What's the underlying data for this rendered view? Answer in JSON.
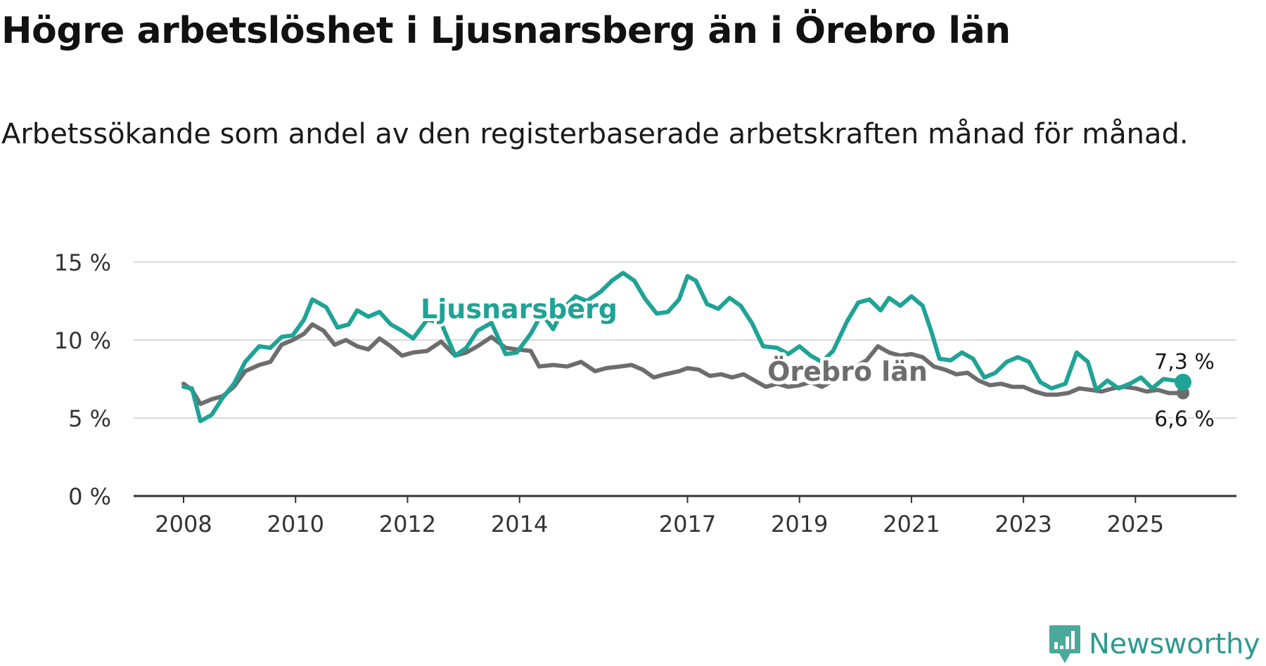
{
  "title": "Högre arbetslöshet i Ljusnarsberg än i Örebro län",
  "subtitle": "Arbetssökande som andel av den registerbaserade arbetskraften månad för månad.",
  "logo": {
    "text": "Newsworthy",
    "icon": "newsworthy-chart-icon"
  },
  "colors": {
    "ljusnarsberg": "#1fa396",
    "orebro": "#6d6d6d",
    "grid": "#d9d9d9",
    "axis": "#333333"
  },
  "chart_data": {
    "type": "line",
    "title": "Högre arbetslöshet i Ljusnarsberg än i Örebro län",
    "subtitle": "Arbetssökande som andel av den registerbaserade arbetskraften månad för månad.",
    "xlabel": "",
    "ylabel": "",
    "ylim": [
      0,
      15
    ],
    "xlim": [
      2008.0,
      2025.9
    ],
    "yticks": [
      0,
      5,
      10,
      15
    ],
    "ytick_labels": [
      "0 %",
      "5 %",
      "10 %",
      "15 %"
    ],
    "xticks": [
      2008,
      2010,
      2012,
      2014,
      2017,
      2019,
      2021,
      2023,
      2025
    ],
    "xtick_labels": [
      "2008",
      "2010",
      "2012",
      "2014",
      "2017",
      "2019",
      "2021",
      "2023",
      "2025"
    ],
    "grid": true,
    "series": [
      {
        "name": "Ljusnarsberg",
        "label": "Ljusnarsberg",
        "end_label": "7,3 %",
        "points": [
          [
            2008.0,
            7.0
          ],
          [
            2008.15,
            6.9
          ],
          [
            2008.3,
            4.8
          ],
          [
            2008.5,
            5.2
          ],
          [
            2008.7,
            6.3
          ],
          [
            2008.9,
            7.2
          ],
          [
            2009.1,
            8.6
          ],
          [
            2009.35,
            9.6
          ],
          [
            2009.55,
            9.5
          ],
          [
            2009.75,
            10.2
          ],
          [
            2009.95,
            10.3
          ],
          [
            2010.15,
            11.3
          ],
          [
            2010.3,
            12.6
          ],
          [
            2010.55,
            12.1
          ],
          [
            2010.75,
            10.8
          ],
          [
            2010.95,
            11.0
          ],
          [
            2011.1,
            11.9
          ],
          [
            2011.3,
            11.5
          ],
          [
            2011.5,
            11.8
          ],
          [
            2011.7,
            11.0
          ],
          [
            2011.9,
            10.6
          ],
          [
            2012.1,
            10.1
          ],
          [
            2012.35,
            11.3
          ],
          [
            2012.6,
            11.1
          ],
          [
            2012.85,
            9.0
          ],
          [
            2013.05,
            9.5
          ],
          [
            2013.25,
            10.6
          ],
          [
            2013.5,
            11.1
          ],
          [
            2013.75,
            9.1
          ],
          [
            2013.95,
            9.2
          ],
          [
            2014.2,
            10.4
          ],
          [
            2014.4,
            11.7
          ],
          [
            2014.6,
            10.7
          ],
          [
            2014.8,
            12.1
          ],
          [
            2015.0,
            12.8
          ],
          [
            2015.2,
            12.5
          ],
          [
            2015.45,
            13.1
          ],
          [
            2015.65,
            13.8
          ],
          [
            2015.85,
            14.3
          ],
          [
            2016.05,
            13.8
          ],
          [
            2016.25,
            12.6
          ],
          [
            2016.45,
            11.7
          ],
          [
            2016.65,
            11.8
          ],
          [
            2016.85,
            12.6
          ],
          [
            2017.0,
            14.1
          ],
          [
            2017.15,
            13.8
          ],
          [
            2017.35,
            12.3
          ],
          [
            2017.55,
            12.0
          ],
          [
            2017.75,
            12.7
          ],
          [
            2017.95,
            12.2
          ],
          [
            2018.15,
            11.1
          ],
          [
            2018.35,
            9.6
          ],
          [
            2018.6,
            9.5
          ],
          [
            2018.8,
            9.1
          ],
          [
            2019.0,
            9.6
          ],
          [
            2019.2,
            9.0
          ],
          [
            2019.4,
            8.6
          ],
          [
            2019.6,
            9.3
          ],
          [
            2019.85,
            11.2
          ],
          [
            2020.05,
            12.4
          ],
          [
            2020.25,
            12.6
          ],
          [
            2020.45,
            11.9
          ],
          [
            2020.6,
            12.7
          ],
          [
            2020.8,
            12.2
          ],
          [
            2021.0,
            12.8
          ],
          [
            2021.2,
            12.2
          ],
          [
            2021.35,
            10.6
          ],
          [
            2021.5,
            8.8
          ],
          [
            2021.7,
            8.7
          ],
          [
            2021.9,
            9.2
          ],
          [
            2022.1,
            8.8
          ],
          [
            2022.3,
            7.6
          ],
          [
            2022.5,
            7.9
          ],
          [
            2022.7,
            8.6
          ],
          [
            2022.9,
            8.9
          ],
          [
            2023.1,
            8.6
          ],
          [
            2023.3,
            7.3
          ],
          [
            2023.5,
            6.9
          ],
          [
            2023.75,
            7.2
          ],
          [
            2023.95,
            9.2
          ],
          [
            2024.15,
            8.6
          ],
          [
            2024.3,
            6.8
          ],
          [
            2024.5,
            7.4
          ],
          [
            2024.7,
            6.9
          ],
          [
            2024.9,
            7.2
          ],
          [
            2025.1,
            7.6
          ],
          [
            2025.3,
            6.9
          ],
          [
            2025.5,
            7.5
          ],
          [
            2025.7,
            7.4
          ],
          [
            2025.85,
            7.3
          ]
        ]
      },
      {
        "name": "Örebro län",
        "label": "Örebro län",
        "end_label": "6,6 %",
        "points": [
          [
            2008.0,
            7.2
          ],
          [
            2008.15,
            6.8
          ],
          [
            2008.3,
            5.9
          ],
          [
            2008.5,
            6.2
          ],
          [
            2008.7,
            6.4
          ],
          [
            2008.9,
            7.0
          ],
          [
            2009.1,
            8.0
          ],
          [
            2009.35,
            8.4
          ],
          [
            2009.55,
            8.6
          ],
          [
            2009.75,
            9.7
          ],
          [
            2009.95,
            10.0
          ],
          [
            2010.15,
            10.4
          ],
          [
            2010.3,
            11.0
          ],
          [
            2010.5,
            10.6
          ],
          [
            2010.7,
            9.7
          ],
          [
            2010.9,
            10.0
          ],
          [
            2011.1,
            9.6
          ],
          [
            2011.3,
            9.4
          ],
          [
            2011.5,
            10.1
          ],
          [
            2011.7,
            9.6
          ],
          [
            2011.9,
            9.0
          ],
          [
            2012.1,
            9.2
          ],
          [
            2012.35,
            9.3
          ],
          [
            2012.6,
            9.9
          ],
          [
            2012.85,
            9.0
          ],
          [
            2013.05,
            9.2
          ],
          [
            2013.25,
            9.6
          ],
          [
            2013.5,
            10.2
          ],
          [
            2013.75,
            9.5
          ],
          [
            2013.95,
            9.4
          ],
          [
            2014.2,
            9.3
          ],
          [
            2014.35,
            8.3
          ],
          [
            2014.6,
            8.4
          ],
          [
            2014.85,
            8.3
          ],
          [
            2015.1,
            8.6
          ],
          [
            2015.35,
            8.0
          ],
          [
            2015.55,
            8.2
          ],
          [
            2015.8,
            8.3
          ],
          [
            2016.0,
            8.4
          ],
          [
            2016.2,
            8.1
          ],
          [
            2016.4,
            7.6
          ],
          [
            2016.6,
            7.8
          ],
          [
            2016.85,
            8.0
          ],
          [
            2017.0,
            8.2
          ],
          [
            2017.2,
            8.1
          ],
          [
            2017.4,
            7.7
          ],
          [
            2017.6,
            7.8
          ],
          [
            2017.8,
            7.6
          ],
          [
            2018.0,
            7.8
          ],
          [
            2018.2,
            7.4
          ],
          [
            2018.4,
            7.0
          ],
          [
            2018.6,
            7.2
          ],
          [
            2018.8,
            7.0
          ],
          [
            2019.0,
            7.1
          ],
          [
            2019.2,
            7.3
          ],
          [
            2019.4,
            7.0
          ],
          [
            2019.6,
            7.4
          ],
          [
            2019.8,
            7.9
          ],
          [
            2020.0,
            8.3
          ],
          [
            2020.2,
            8.7
          ],
          [
            2020.4,
            9.6
          ],
          [
            2020.6,
            9.2
          ],
          [
            2020.8,
            9.0
          ],
          [
            2021.0,
            9.1
          ],
          [
            2021.2,
            8.9
          ],
          [
            2021.4,
            8.3
          ],
          [
            2021.6,
            8.1
          ],
          [
            2021.8,
            7.8
          ],
          [
            2022.0,
            7.9
          ],
          [
            2022.2,
            7.4
          ],
          [
            2022.4,
            7.1
          ],
          [
            2022.6,
            7.2
          ],
          [
            2022.8,
            7.0
          ],
          [
            2023.0,
            7.0
          ],
          [
            2023.2,
            6.7
          ],
          [
            2023.4,
            6.5
          ],
          [
            2023.6,
            6.5
          ],
          [
            2023.8,
            6.6
          ],
          [
            2024.0,
            6.9
          ],
          [
            2024.2,
            6.8
          ],
          [
            2024.4,
            6.7
          ],
          [
            2024.6,
            6.9
          ],
          [
            2024.8,
            7.0
          ],
          [
            2025.0,
            6.9
          ],
          [
            2025.2,
            6.7
          ],
          [
            2025.4,
            6.8
          ],
          [
            2025.6,
            6.6
          ],
          [
            2025.85,
            6.6
          ]
        ]
      }
    ]
  }
}
